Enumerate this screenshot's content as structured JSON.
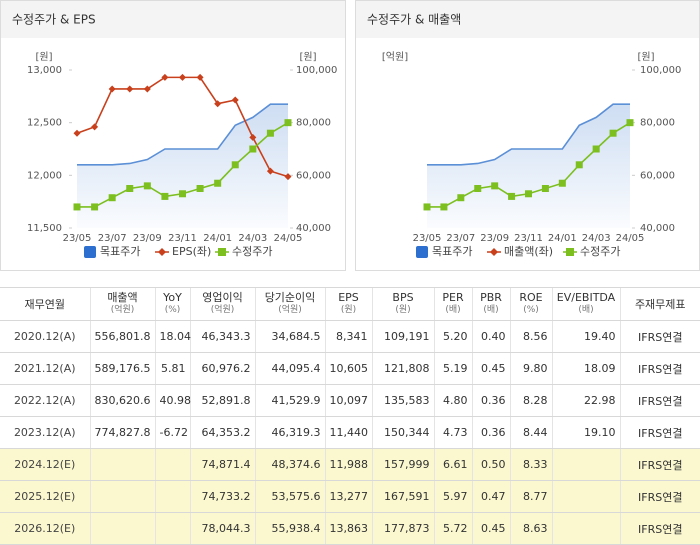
{
  "chart_data": [
    {
      "type": "line",
      "title": "수정주가 & EPS",
      "ylabel": "[원]",
      "y2label": "[원]",
      "categories": [
        "23/05",
        null,
        "23/07",
        null,
        "23/09",
        null,
        "23/11",
        null,
        "24/01",
        null,
        "24/03",
        null,
        "24/05"
      ],
      "ylim": [
        11500,
        13000
      ],
      "yticks": [
        {
          "value": 11500,
          "label": "11,500"
        },
        {
          "value": 12000,
          "label": "12,000"
        },
        {
          "value": 12500,
          "label": "12,500"
        },
        {
          "value": 13000,
          "label": "13,000"
        }
      ],
      "y2lim": [
        40000,
        100000
      ],
      "y2ticks": [
        {
          "value": 40000,
          "label": "40,000"
        },
        {
          "value": 60000,
          "label": "60,000"
        },
        {
          "value": 80000,
          "label": "80,000"
        },
        {
          "value": 100000,
          "label": "100,000"
        }
      ],
      "series": [
        {
          "name": "목표주가",
          "color": "#5b8fd6",
          "area": true,
          "marker": "none",
          "axis": "y2",
          "values": [
            64000,
            64000,
            64000,
            64500,
            66000,
            70000,
            70000,
            70000,
            70000,
            79000,
            82000,
            87000,
            87000
          ]
        },
        {
          "name": "EPS(좌)",
          "color": "#c8401c",
          "marker": "diamond",
          "axis": "y",
          "values": [
            12400,
            12460,
            12820,
            12820,
            12820,
            12930,
            12930,
            12930,
            12680,
            12715,
            12360,
            12040,
            11988
          ]
        },
        {
          "name": "수정주가",
          "color": "#7cbf1f",
          "marker": "square",
          "axis": "y2",
          "values": [
            48000,
            48000,
            51500,
            55000,
            56000,
            52000,
            53000,
            55000,
            57000,
            64000,
            70000,
            76000,
            80000
          ]
        }
      ]
    },
    {
      "type": "line",
      "title": "수정주가 & 매출액",
      "ylabel": "[억원]",
      "y2label": "[원]",
      "categories": [
        "23/05",
        null,
        "23/07",
        null,
        "23/09",
        null,
        "23/11",
        null,
        "24/01",
        null,
        "24/03",
        null,
        "24/05"
      ],
      "y2lim": [
        40000,
        100000
      ],
      "y2ticks": [
        {
          "value": 40000,
          "label": "40,000"
        },
        {
          "value": 60000,
          "label": "60,000"
        },
        {
          "value": 80000,
          "label": "80,000"
        },
        {
          "value": 100000,
          "label": "100,000"
        }
      ],
      "series": [
        {
          "name": "목표주가",
          "color": "#5b8fd6",
          "area": true,
          "marker": "none",
          "axis": "y2",
          "values": [
            64000,
            64000,
            64000,
            64500,
            66000,
            70000,
            70000,
            70000,
            70000,
            79000,
            82000,
            87000,
            87000
          ]
        },
        {
          "name": "매출액(좌)",
          "color": "#c8401c",
          "marker": "diamond",
          "axis": "y",
          "values": [
            null,
            null,
            null,
            null,
            null,
            null,
            null,
            null,
            null,
            null,
            null,
            null,
            null
          ]
        },
        {
          "name": "수정주가",
          "color": "#7cbf1f",
          "marker": "square",
          "axis": "y2",
          "values": [
            48000,
            48000,
            51500,
            55000,
            56000,
            52000,
            53000,
            55000,
            57000,
            64000,
            70000,
            76000,
            80000
          ]
        }
      ]
    }
  ],
  "table": {
    "header": [
      {
        "label": "재무연월"
      },
      {
        "label": "매출액",
        "unit": "(억원)"
      },
      {
        "label": "YoY",
        "unit": "(%)"
      },
      {
        "label": "영업이익",
        "unit": "(억원)"
      },
      {
        "label": "당기순이익",
        "unit": "(억원)"
      },
      {
        "label": "EPS",
        "unit": "(원)"
      },
      {
        "label": "BPS",
        "unit": "(원)"
      },
      {
        "label": "PER",
        "unit": "(배)"
      },
      {
        "label": "PBR",
        "unit": "(배)"
      },
      {
        "label": "ROE",
        "unit": "(%)"
      },
      {
        "label": "EV/EBITDA",
        "unit": "(배)"
      },
      {
        "label": "주재무제표"
      }
    ],
    "rows": [
      [
        "2020.12(A)",
        "556,801.8",
        "18.04",
        "46,343.3",
        "34,684.5",
        "8,341",
        "109,191",
        "5.20",
        "0.40",
        "8.56",
        "19.40",
        "IFRS연결"
      ],
      [
        "2021.12(A)",
        "589,176.5",
        "5.81",
        "60,976.2",
        "44,095.4",
        "10,605",
        "121,808",
        "5.19",
        "0.45",
        "9.80",
        "18.09",
        "IFRS연결"
      ],
      [
        "2022.12(A)",
        "830,620.6",
        "40.98",
        "52,891.8",
        "41,529.9",
        "10,097",
        "135,583",
        "4.80",
        "0.36",
        "8.28",
        "22.98",
        "IFRS연결"
      ],
      [
        "2023.12(A)",
        "774,827.8",
        "-6.72",
        "64,353.2",
        "46,319.3",
        "11,440",
        "150,344",
        "4.73",
        "0.36",
        "8.44",
        "19.10",
        "IFRS연결"
      ],
      [
        "2024.12(E)",
        "",
        "",
        "74,871.4",
        "48,374.6",
        "11,988",
        "157,999",
        "6.61",
        "0.50",
        "8.33",
        "",
        "IFRS연결"
      ],
      [
        "2025.12(E)",
        "",
        "",
        "74,733.2",
        "53,575.6",
        "13,277",
        "167,591",
        "5.97",
        "0.47",
        "8.77",
        "",
        "IFRS연결"
      ],
      [
        "2026.12(E)",
        "",
        "",
        "78,044.3",
        "55,938.4",
        "13,863",
        "177,873",
        "5.72",
        "0.45",
        "8.63",
        "",
        "IFRS연결"
      ]
    ],
    "highlight_rows": [
      4,
      5,
      6
    ],
    "highlight_color": "#fbf8d0"
  }
}
